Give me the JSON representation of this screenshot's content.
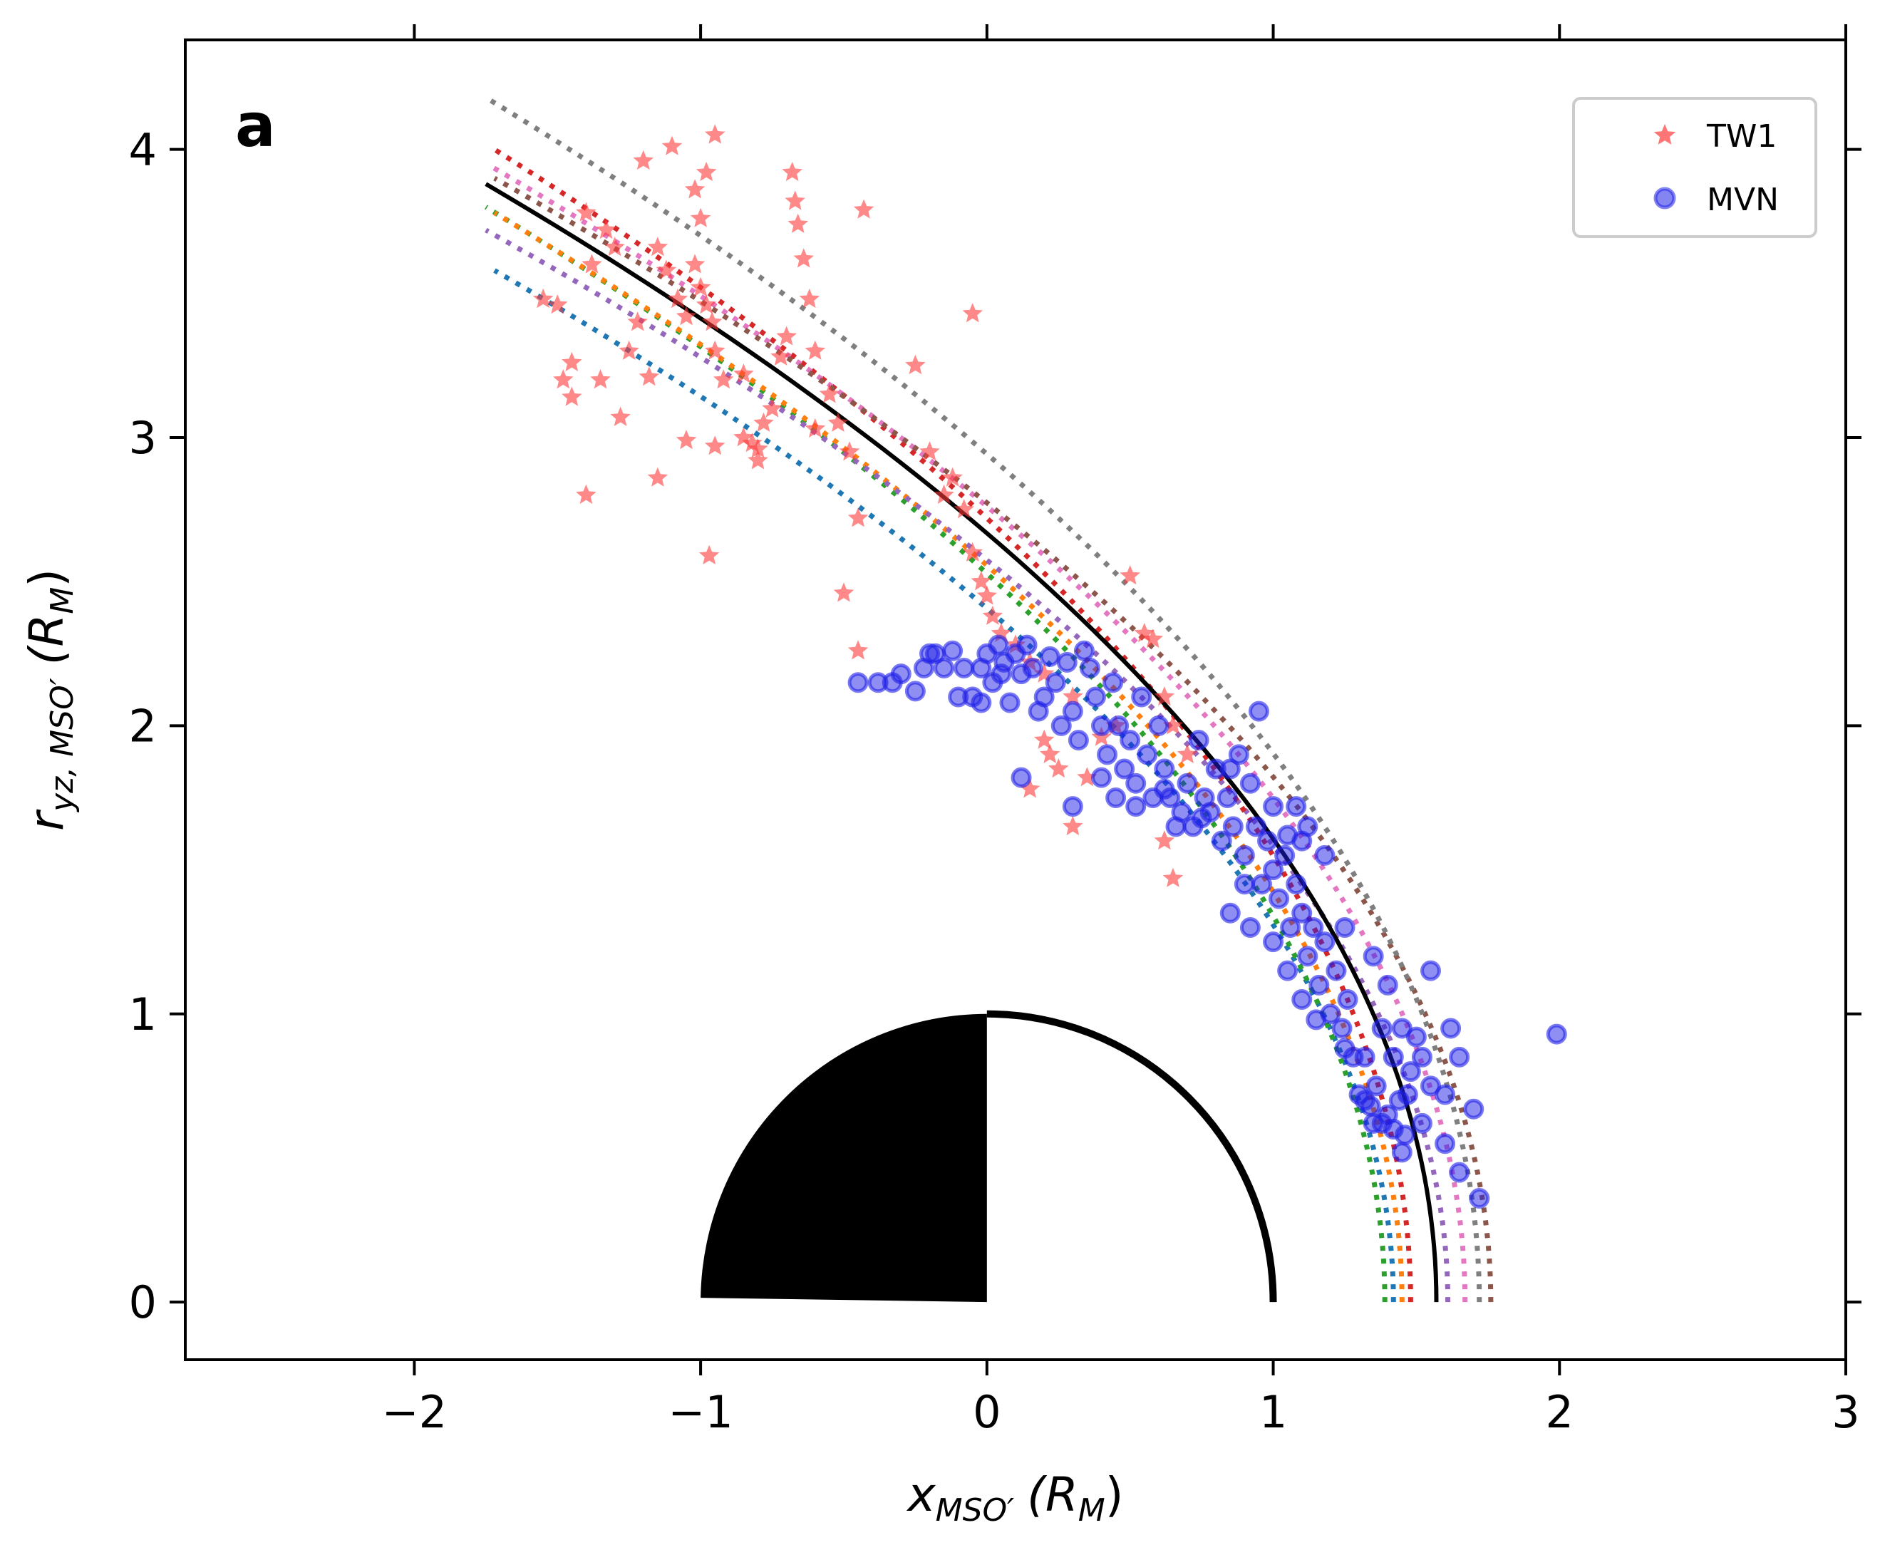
{
  "chart_data": {
    "type": "scatter",
    "panel_label": "a",
    "xlabel": {
      "main": "x",
      "sub": "MSO′",
      "unit": "(R",
      "unit_sub": "M",
      "close": ")"
    },
    "ylabel": {
      "main": "r",
      "sub": "yz, MSO′",
      "unit": "(R",
      "unit_sub": "M",
      "close": ")"
    },
    "xlim": [
      -2.8,
      3.0
    ],
    "ylim": [
      -0.2,
      4.38
    ],
    "xticks": [
      -2,
      -1,
      0,
      1,
      2,
      3
    ],
    "yticks": [
      0,
      1,
      2,
      3,
      4
    ],
    "xtick_labels": [
      "−2",
      "−1",
      "0",
      "1",
      "2",
      "3"
    ],
    "ytick_labels": [
      "0",
      "1",
      "2",
      "3",
      "4"
    ],
    "legend": {
      "position": "top-right",
      "entries": [
        {
          "label": "TW1",
          "marker": "star",
          "color": "#ff3b3b"
        },
        {
          "label": "MVN",
          "marker": "circle",
          "color": "#2020e8"
        }
      ]
    },
    "model_curves": [
      {
        "style": "solid",
        "color": "#000000",
        "x0": 1.57,
        "x_end": -1.75,
        "y_end": 3.88
      },
      {
        "style": "dotted",
        "color": "#1f77b4",
        "x0": 1.42,
        "x_end": -1.72,
        "y_end": 3.58
      },
      {
        "style": "dotted",
        "color": "#2ca02c",
        "x0": 1.39,
        "x_end": -1.75,
        "y_end": 3.8
      },
      {
        "style": "dotted",
        "color": "#ff7f0e",
        "x0": 1.45,
        "x_end": -1.72,
        "y_end": 3.78
      },
      {
        "style": "dotted",
        "color": "#9467bd",
        "x0": 1.61,
        "x_end": -1.75,
        "y_end": 3.72
      },
      {
        "style": "dotted",
        "color": "#d62728",
        "x0": 1.48,
        "x_end": -1.72,
        "y_end": 4.0
      },
      {
        "style": "dotted",
        "color": "#e377c2",
        "x0": 1.67,
        "x_end": -1.73,
        "y_end": 3.94
      },
      {
        "style": "dotted",
        "color": "#8c564b",
        "x0": 1.76,
        "x_end": -1.72,
        "y_end": 3.9
      },
      {
        "style": "dotted",
        "color": "#7f7f7f",
        "x0": 1.72,
        "x_end": -1.75,
        "y_end": 4.18
      }
    ],
    "series": [
      {
        "name": "TW1",
        "marker": "star",
        "color": "#ff3b3b",
        "points": [
          [
            -1.55,
            3.48
          ],
          [
            -1.5,
            3.46
          ],
          [
            -1.45,
            3.26
          ],
          [
            -1.48,
            3.2
          ],
          [
            -1.45,
            3.14
          ],
          [
            -1.4,
            2.8
          ],
          [
            -1.35,
            3.2
          ],
          [
            -1.28,
            3.07
          ],
          [
            -1.38,
            3.6
          ],
          [
            -1.4,
            3.78
          ],
          [
            -1.33,
            3.72
          ],
          [
            -1.3,
            3.66
          ],
          [
            -1.25,
            3.3
          ],
          [
            -1.22,
            3.4
          ],
          [
            -1.2,
            3.96
          ],
          [
            -1.15,
            3.66
          ],
          [
            -1.12,
            3.58
          ],
          [
            -1.15,
            2.86
          ],
          [
            -1.08,
            3.48
          ],
          [
            -1.05,
            3.42
          ],
          [
            -1.02,
            3.6
          ],
          [
            -1.0,
            3.52
          ],
          [
            -0.98,
            3.46
          ],
          [
            -0.96,
            3.4
          ],
          [
            -0.95,
            3.3
          ],
          [
            -0.92,
            3.2
          ],
          [
            -1.0,
            3.76
          ],
          [
            -1.02,
            3.86
          ],
          [
            -0.98,
            3.92
          ],
          [
            -0.95,
            4.05
          ],
          [
            -1.1,
            4.01
          ],
          [
            -0.85,
            3.22
          ],
          [
            -0.82,
            2.98
          ],
          [
            -0.8,
            2.92
          ],
          [
            -0.78,
            3.05
          ],
          [
            -0.75,
            3.1
          ],
          [
            -0.72,
            3.28
          ],
          [
            -0.7,
            3.35
          ],
          [
            -0.68,
            3.92
          ],
          [
            -0.67,
            3.82
          ],
          [
            -0.66,
            3.74
          ],
          [
            -0.64,
            3.62
          ],
          [
            -0.62,
            3.48
          ],
          [
            -0.6,
            3.3
          ],
          [
            -0.55,
            3.15
          ],
          [
            -0.52,
            3.05
          ],
          [
            -0.48,
            2.95
          ],
          [
            -0.45,
            2.72
          ],
          [
            -0.43,
            3.79
          ],
          [
            -0.5,
            2.46
          ],
          [
            -0.45,
            2.26
          ],
          [
            -0.95,
            2.97
          ],
          [
            -0.97,
            2.59
          ],
          [
            -1.05,
            2.99
          ],
          [
            -1.18,
            3.21
          ],
          [
            -0.25,
            3.25
          ],
          [
            -0.2,
            2.95
          ],
          [
            -0.12,
            2.86
          ],
          [
            -0.08,
            2.75
          ],
          [
            -0.05,
            2.6
          ],
          [
            -0.02,
            2.5
          ],
          [
            0.0,
            2.45
          ],
          [
            0.02,
            2.38
          ],
          [
            -0.15,
            2.8
          ],
          [
            0.05,
            2.32
          ],
          [
            -0.05,
            3.43
          ],
          [
            0.1,
            2.28
          ],
          [
            0.15,
            2.22
          ],
          [
            0.2,
            2.18
          ],
          [
            0.22,
            1.9
          ],
          [
            0.25,
            1.85
          ],
          [
            0.3,
            2.1
          ],
          [
            0.35,
            1.82
          ],
          [
            0.4,
            1.96
          ],
          [
            0.45,
            2.0
          ],
          [
            0.5,
            2.52
          ],
          [
            0.55,
            2.32
          ],
          [
            0.58,
            2.3
          ],
          [
            0.62,
            2.1
          ],
          [
            0.65,
            2.0
          ],
          [
            0.62,
            1.6
          ],
          [
            0.65,
            1.47
          ],
          [
            0.15,
            1.78
          ],
          [
            0.2,
            1.95
          ],
          [
            0.3,
            1.65
          ],
          [
            0.7,
            1.9
          ],
          [
            -0.8,
            2.96
          ],
          [
            -0.85,
            3.0
          ],
          [
            -0.6,
            3.03
          ]
        ]
      },
      {
        "name": "MVN",
        "marker": "circle",
        "color": "#2020e8",
        "points": [
          [
            -0.45,
            2.15
          ],
          [
            -0.38,
            2.15
          ],
          [
            -0.33,
            2.15
          ],
          [
            -0.3,
            2.18
          ],
          [
            -0.25,
            2.12
          ],
          [
            -0.22,
            2.2
          ],
          [
            -0.2,
            2.25
          ],
          [
            -0.18,
            2.25
          ],
          [
            -0.15,
            2.2
          ],
          [
            -0.12,
            2.26
          ],
          [
            -0.1,
            2.1
          ],
          [
            -0.08,
            2.2
          ],
          [
            -0.05,
            2.1
          ],
          [
            -0.02,
            2.2
          ],
          [
            0.0,
            2.25
          ],
          [
            0.02,
            2.15
          ],
          [
            0.04,
            2.28
          ],
          [
            0.06,
            2.22
          ],
          [
            0.08,
            2.08
          ],
          [
            0.1,
            2.25
          ],
          [
            0.12,
            2.18
          ],
          [
            0.14,
            2.28
          ],
          [
            0.16,
            2.2
          ],
          [
            0.18,
            2.05
          ],
          [
            0.2,
            2.1
          ],
          [
            0.22,
            2.24
          ],
          [
            0.24,
            2.15
          ],
          [
            0.26,
            2.0
          ],
          [
            0.28,
            2.22
          ],
          [
            0.3,
            2.05
          ],
          [
            0.32,
            1.95
          ],
          [
            0.34,
            2.26
          ],
          [
            0.36,
            2.2
          ],
          [
            0.38,
            2.1
          ],
          [
            0.4,
            2.0
          ],
          [
            0.42,
            1.9
          ],
          [
            0.44,
            2.15
          ],
          [
            0.46,
            2.0
          ],
          [
            0.48,
            1.85
          ],
          [
            0.5,
            1.95
          ],
          [
            0.52,
            1.8
          ],
          [
            0.54,
            2.1
          ],
          [
            0.56,
            1.9
          ],
          [
            0.58,
            1.75
          ],
          [
            0.6,
            2.0
          ],
          [
            0.62,
            1.85
          ],
          [
            0.64,
            1.75
          ],
          [
            0.66,
            1.65
          ],
          [
            0.68,
            1.7
          ],
          [
            0.7,
            1.8
          ],
          [
            0.72,
            1.65
          ],
          [
            0.74,
            1.95
          ],
          [
            0.76,
            1.75
          ],
          [
            0.78,
            1.7
          ],
          [
            0.8,
            1.85
          ],
          [
            0.82,
            1.6
          ],
          [
            0.84,
            1.75
          ],
          [
            0.86,
            1.65
          ],
          [
            0.88,
            1.9
          ],
          [
            0.9,
            1.55
          ],
          [
            0.92,
            1.8
          ],
          [
            0.94,
            1.65
          ],
          [
            0.96,
            1.45
          ],
          [
            0.98,
            1.6
          ],
          [
            1.0,
            1.5
          ],
          [
            1.02,
            1.4
          ],
          [
            1.04,
            1.55
          ],
          [
            1.06,
            1.3
          ],
          [
            1.08,
            1.45
          ],
          [
            1.1,
            1.35
          ],
          [
            1.12,
            1.2
          ],
          [
            1.14,
            1.3
          ],
          [
            1.16,
            1.1
          ],
          [
            1.18,
            1.25
          ],
          [
            1.2,
            1.0
          ],
          [
            1.22,
            1.15
          ],
          [
            1.24,
            0.95
          ],
          [
            1.26,
            1.05
          ],
          [
            1.28,
            0.85
          ],
          [
            1.3,
            0.72
          ],
          [
            1.32,
            0.7
          ],
          [
            1.34,
            0.68
          ],
          [
            1.36,
            0.75
          ],
          [
            1.38,
            0.62
          ],
          [
            1.4,
            0.65
          ],
          [
            1.42,
            0.6
          ],
          [
            1.44,
            0.7
          ],
          [
            1.46,
            0.58
          ],
          [
            1.48,
            0.8
          ],
          [
            1.5,
            0.92
          ],
          [
            1.52,
            0.85
          ],
          [
            1.55,
            0.75
          ],
          [
            1.6,
            0.72
          ],
          [
            1.62,
            0.95
          ],
          [
            1.65,
            0.85
          ],
          [
            1.7,
            0.67
          ],
          [
            1.72,
            0.36
          ],
          [
            1.99,
            0.93
          ],
          [
            1.08,
            1.72
          ],
          [
            1.12,
            1.65
          ],
          [
            1.18,
            1.55
          ],
          [
            1.25,
            1.3
          ],
          [
            1.35,
            1.2
          ],
          [
            1.4,
            1.1
          ],
          [
            1.45,
            0.95
          ],
          [
            1.55,
            1.15
          ],
          [
            1.6,
            0.55
          ],
          [
            1.65,
            0.45
          ],
          [
            0.05,
            2.18
          ],
          [
            -0.02,
            2.08
          ],
          [
            0.12,
            1.82
          ],
          [
            0.3,
            1.72
          ],
          [
            0.4,
            1.82
          ],
          [
            0.45,
            1.75
          ],
          [
            0.52,
            1.72
          ],
          [
            0.62,
            1.78
          ],
          [
            0.75,
            1.68
          ],
          [
            0.85,
            1.85
          ],
          [
            0.95,
            2.05
          ],
          [
            1.0,
            1.72
          ],
          [
            1.05,
            1.62
          ],
          [
            1.1,
            1.6
          ],
          [
            0.9,
            1.45
          ],
          [
            0.85,
            1.35
          ],
          [
            0.92,
            1.3
          ],
          [
            1.0,
            1.25
          ],
          [
            1.05,
            1.15
          ],
          [
            1.1,
            1.05
          ],
          [
            1.15,
            0.98
          ],
          [
            1.25,
            0.88
          ],
          [
            1.32,
            0.85
          ],
          [
            1.38,
            0.95
          ],
          [
            1.42,
            0.85
          ],
          [
            1.47,
            0.72
          ],
          [
            1.52,
            0.62
          ],
          [
            1.45,
            0.52
          ],
          [
            1.35,
            0.62
          ]
        ]
      }
    ]
  }
}
